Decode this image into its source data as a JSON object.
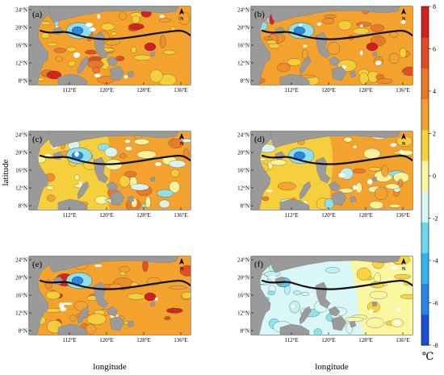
{
  "panels": [
    {
      "label": "(a)",
      "mode": "warm"
    },
    {
      "label": "(b)",
      "mode": "warm"
    },
    {
      "label": "(c)",
      "mode": "mixed"
    },
    {
      "label": "(d)",
      "mode": "mixed"
    },
    {
      "label": "(e)",
      "mode": "warm"
    },
    {
      "label": "(f)",
      "mode": "cool"
    }
  ],
  "lat_ticks": [
    "24°N",
    "20°N",
    "16°N",
    "12°N",
    "8°N"
  ],
  "lon_ticks": [
    "112°E",
    "120°E",
    "128°E",
    "136°E"
  ],
  "xlabel": "longitude",
  "ylabel": "latitude",
  "colorbar": {
    "ticks": [
      "8",
      "6",
      "4",
      "2",
      "0",
      "-2",
      "-4",
      "-6",
      "-8"
    ],
    "unit": "℃",
    "colors": [
      "#1f4fd6",
      "#2a86e6",
      "#35b3ee",
      "#6fd6ee",
      "#d9f7f7",
      "#fbf6a0",
      "#f6d23a",
      "#f3a32d",
      "#e9772a",
      "#e04a24",
      "#d21f1f"
    ]
  },
  "colors": {
    "land": "#9a9a9a",
    "track": "#111111",
    "warm": [
      "#f6cf3c",
      "#f3a32d",
      "#ee8c2b",
      "#e9772a",
      "#f6d23a"
    ],
    "hot": [
      "#e04a24",
      "#d21f1f"
    ],
    "cool": [
      "#d9f7f7",
      "#bdeff3",
      "#8fe0ee",
      "#5cc6ea"
    ],
    "cold": [
      "#2a86e6",
      "#1f4fd6"
    ]
  }
}
